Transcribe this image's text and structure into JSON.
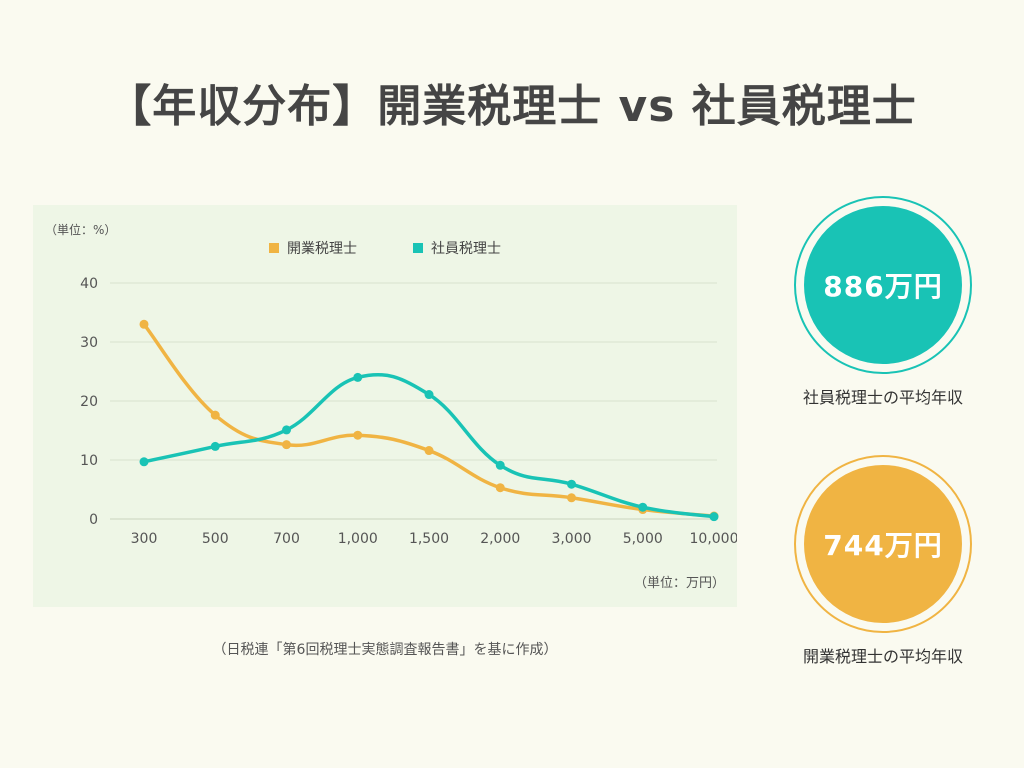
{
  "title": "【年収分布】開業税理士 vs 社員税理士",
  "colors": {
    "background": "#fafaf0",
    "panel": "#eef6e6",
    "kaigyo": "#f0b443",
    "shain": "#19c3b5",
    "gridline": "#d8e3cf",
    "axis_text": "#555555"
  },
  "chart_data": {
    "type": "line",
    "smooth": true,
    "y_unit_label": "（単位：%）",
    "x_unit_label": "（単位：万円）",
    "categories": [
      "300",
      "500",
      "700",
      "1,000",
      "1,500",
      "2,000",
      "3,000",
      "5,000",
      "10,000"
    ],
    "ylim": [
      0,
      40
    ],
    "yticks": [
      0,
      10,
      20,
      30,
      40
    ],
    "grid": true,
    "legend_position": "top-center",
    "series": [
      {
        "name": "開業税理士",
        "color_key": "kaigyo",
        "values": [
          33,
          17.6,
          12.6,
          14.2,
          11.6,
          5.3,
          3.6,
          1.6,
          0.5
        ]
      },
      {
        "name": "社員税理士",
        "color_key": "shain",
        "values": [
          9.7,
          12.3,
          15.1,
          24,
          21.1,
          9.1,
          5.9,
          2,
          0.4
        ]
      }
    ]
  },
  "source_note": "（日税連「第6回税理士実態調査報告書」を基に作成）",
  "stats": {
    "shain": {
      "value": "886万円",
      "label": "社員税理士の平均年収"
    },
    "kaigyo": {
      "value": "744万円",
      "label": "開業税理士の平均年収"
    }
  }
}
